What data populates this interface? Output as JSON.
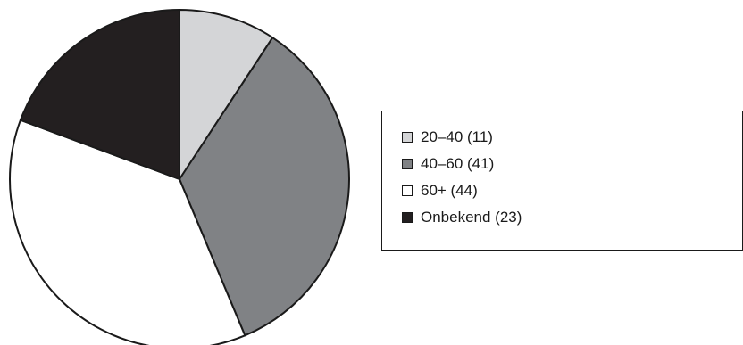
{
  "chart_data": {
    "type": "pie",
    "slices": [
      {
        "label": "20–40 (11)",
        "category": "20–40",
        "value": 11,
        "color": "#d4d5d7"
      },
      {
        "label": "40–60 (41)",
        "category": "40–60",
        "value": 41,
        "color": "#808285"
      },
      {
        "label": "60+ (44)",
        "category": "60+",
        "value": 44,
        "color": "#ffffff"
      },
      {
        "label": "Onbekend (23)",
        "category": "Onbekend",
        "value": 23,
        "color": "#231f20"
      }
    ],
    "total": 119,
    "start": "12 o'clock",
    "direction": "clockwise",
    "legend_position": "right",
    "outline_color": "#1a1a1a"
  }
}
